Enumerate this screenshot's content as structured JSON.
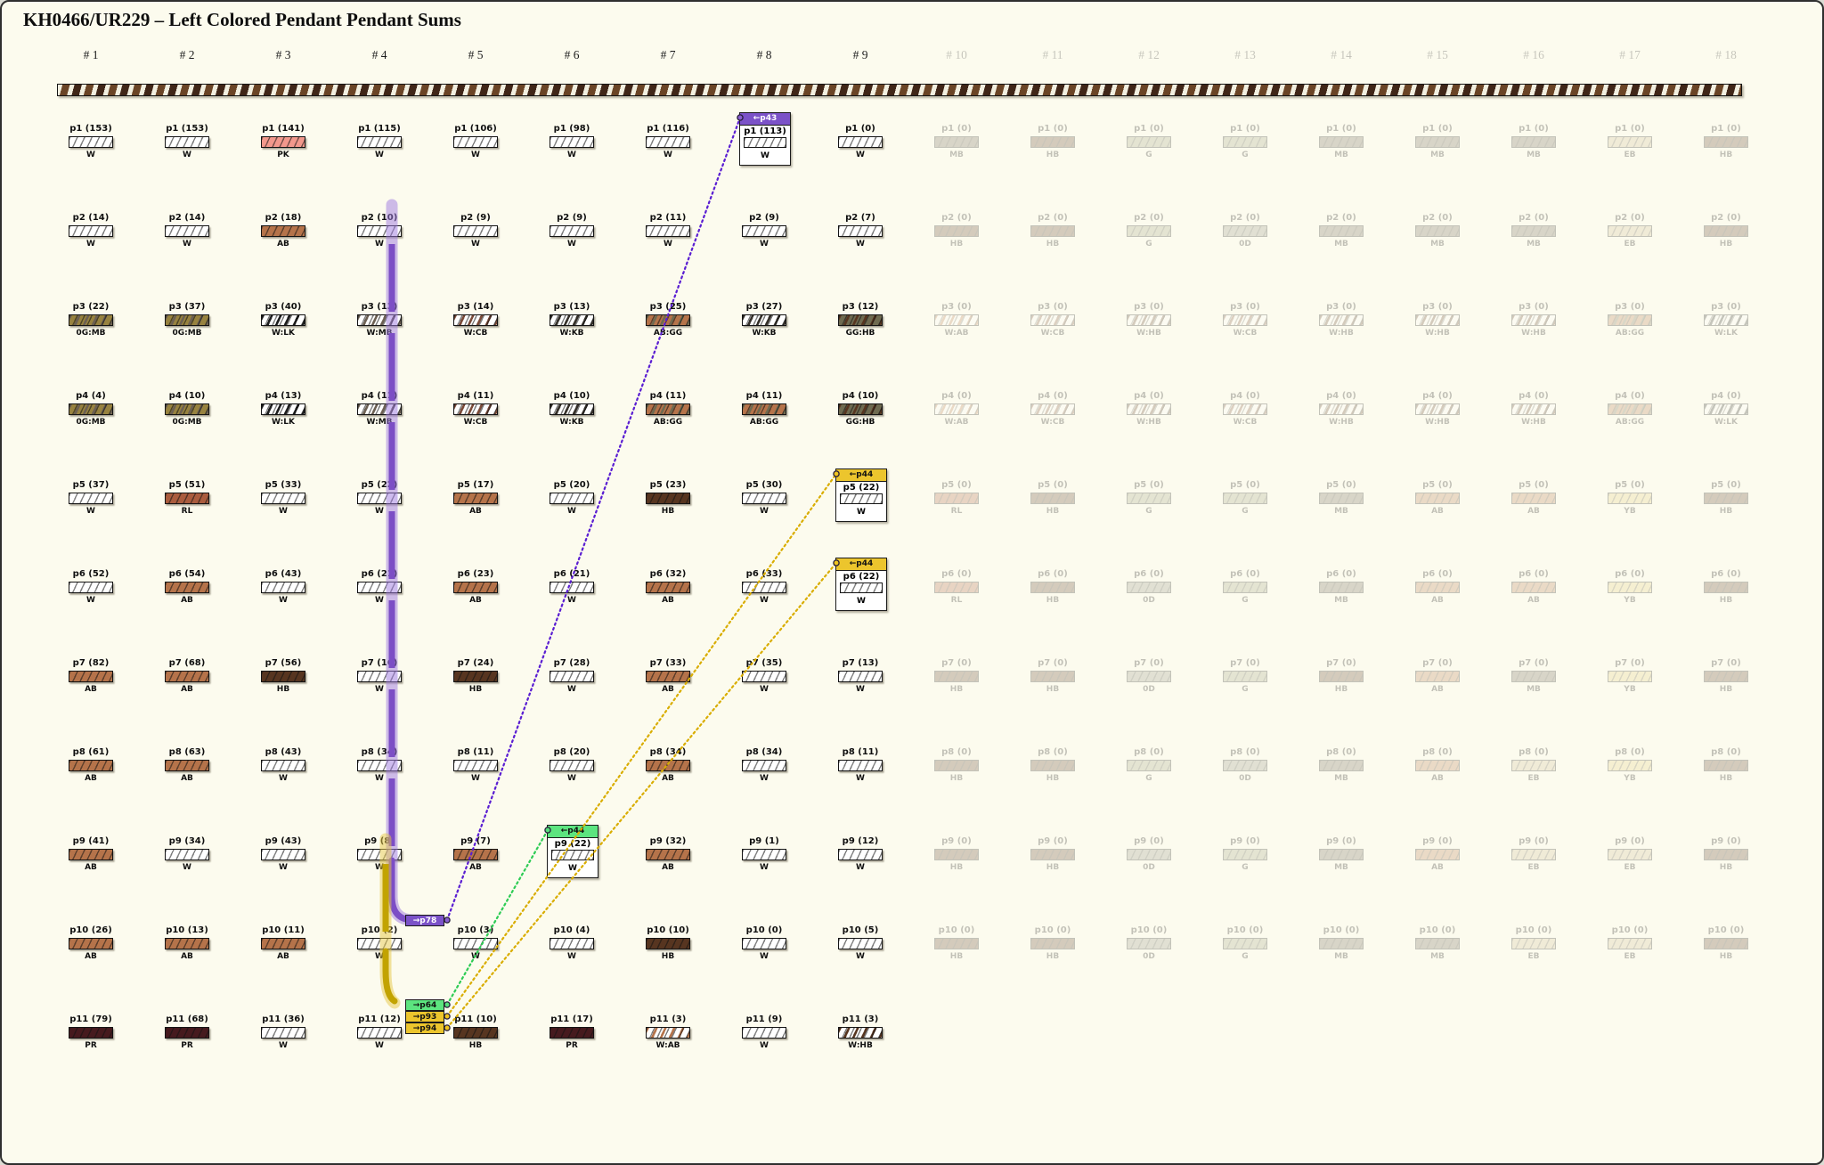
{
  "title": "KH0466/UR229 – Left Colored Pendant Pendant Sums",
  "colors": {
    "background": "#fcfbee",
    "purple": "#7b52c8",
    "purple_line": "#5a1ed2",
    "purple_dark": "#7c4ec5",
    "purple_halo": "rgba(158,122,224,0.5)",
    "gold": "#ecc52d",
    "gold_line": "#d9ad00",
    "gold_dark": "#c2a300",
    "gold_halo": "rgba(230,200,70,0.5)",
    "green": "#5ce47f",
    "green_line": "#2ecc55",
    "bar_codes": {
      "W": "#ffffff",
      "PK": "#f2988c",
      "AB": "#b5734a",
      "HB": "#573520",
      "PR": "#461a1e",
      "RL": "#aa5c3e",
      "0G": "#97823f",
      "GG": "#6e6a50",
      "MB": "#6b5f52",
      "CB": "#7a4a38",
      "KB": "#35302a",
      "LK": "#1d1d1d",
      "EB": "#cbb993",
      "YB": "#e0cc78",
      "G": "#9aa07e",
      "0D": "#8d8d82"
    }
  },
  "columns": [
    {
      "header": "# 1",
      "faded": false,
      "cells": [
        {
          "p": "p1",
          "count": 153,
          "code": "W"
        },
        {
          "p": "p2",
          "count": 14,
          "code": "W"
        },
        {
          "p": "p3",
          "count": 22,
          "code": "0G:MB"
        },
        {
          "p": "p4",
          "count": 4,
          "code": "0G:MB"
        },
        {
          "p": "p5",
          "count": 37,
          "code": "W"
        },
        {
          "p": "p6",
          "count": 52,
          "code": "W"
        },
        {
          "p": "p7",
          "count": 82,
          "code": "AB"
        },
        {
          "p": "p8",
          "count": 61,
          "code": "AB"
        },
        {
          "p": "p9",
          "count": 41,
          "code": "AB"
        },
        {
          "p": "p10",
          "count": 26,
          "code": "AB"
        },
        {
          "p": "p11",
          "count": 79,
          "code": "PR"
        }
      ]
    },
    {
      "header": "# 2",
      "faded": false,
      "cells": [
        {
          "p": "p1",
          "count": 153,
          "code": "W"
        },
        {
          "p": "p2",
          "count": 14,
          "code": "W"
        },
        {
          "p": "p3",
          "count": 37,
          "code": "0G:MB"
        },
        {
          "p": "p4",
          "count": 10,
          "code": "0G:MB"
        },
        {
          "p": "p5",
          "count": 51,
          "code": "RL"
        },
        {
          "p": "p6",
          "count": 54,
          "code": "AB"
        },
        {
          "p": "p7",
          "count": 68,
          "code": "AB"
        },
        {
          "p": "p8",
          "count": 63,
          "code": "AB"
        },
        {
          "p": "p9",
          "count": 34,
          "code": "W"
        },
        {
          "p": "p10",
          "count": 13,
          "code": "AB"
        },
        {
          "p": "p11",
          "count": 68,
          "code": "PR"
        }
      ]
    },
    {
      "header": "# 3",
      "faded": false,
      "cells": [
        {
          "p": "p1",
          "count": 141,
          "code": "PK"
        },
        {
          "p": "p2",
          "count": 18,
          "code": "AB"
        },
        {
          "p": "p3",
          "count": 40,
          "code": "W:LK"
        },
        {
          "p": "p4",
          "count": 13,
          "code": "W:LK"
        },
        {
          "p": "p5",
          "count": 33,
          "code": "W"
        },
        {
          "p": "p6",
          "count": 43,
          "code": "W"
        },
        {
          "p": "p7",
          "count": 56,
          "code": "HB"
        },
        {
          "p": "p8",
          "count": 43,
          "code": "W"
        },
        {
          "p": "p9",
          "count": 43,
          "code": "W"
        },
        {
          "p": "p10",
          "count": 11,
          "code": "AB"
        },
        {
          "p": "p11",
          "count": 36,
          "code": "W"
        }
      ]
    },
    {
      "header": "# 4",
      "faded": false,
      "cells": [
        {
          "p": "p1",
          "count": 115,
          "code": "W"
        },
        {
          "p": "p2",
          "count": 10,
          "code": "W"
        },
        {
          "p": "p3",
          "count": 13,
          "code": "W:MB"
        },
        {
          "p": "p4",
          "count": 11,
          "code": "W:MB"
        },
        {
          "p": "p5",
          "count": 22,
          "code": "W"
        },
        {
          "p": "p6",
          "count": 21,
          "code": "W"
        },
        {
          "p": "p7",
          "count": 16,
          "code": "W"
        },
        {
          "p": "p8",
          "count": 34,
          "code": "W"
        },
        {
          "p": "p9",
          "count": 8,
          "code": "W"
        },
        {
          "p": "p10",
          "count": 2,
          "code": "W"
        },
        {
          "p": "p11",
          "count": 12,
          "code": "W"
        }
      ]
    },
    {
      "header": "# 5",
      "faded": false,
      "cells": [
        {
          "p": "p1",
          "count": 106,
          "code": "W"
        },
        {
          "p": "p2",
          "count": 9,
          "code": "W"
        },
        {
          "p": "p3",
          "count": 14,
          "code": "W:CB"
        },
        {
          "p": "p4",
          "count": 11,
          "code": "W:CB"
        },
        {
          "p": "p5",
          "count": 17,
          "code": "AB"
        },
        {
          "p": "p6",
          "count": 23,
          "code": "AB"
        },
        {
          "p": "p7",
          "count": 24,
          "code": "HB"
        },
        {
          "p": "p8",
          "count": 11,
          "code": "W"
        },
        {
          "p": "p9",
          "count": 7,
          "code": "AB"
        },
        {
          "p": "p10",
          "count": 3,
          "code": "W"
        },
        {
          "p": "p11",
          "count": 10,
          "code": "HB"
        }
      ]
    },
    {
      "header": "# 6",
      "faded": false,
      "cells": [
        {
          "p": "p1",
          "count": 98,
          "code": "W"
        },
        {
          "p": "p2",
          "count": 9,
          "code": "W"
        },
        {
          "p": "p3",
          "count": 13,
          "code": "W:KB"
        },
        {
          "p": "p4",
          "count": 10,
          "code": "W:KB"
        },
        {
          "p": "p5",
          "count": 20,
          "code": "W"
        },
        {
          "p": "p6",
          "count": 21,
          "code": "W"
        },
        {
          "p": "p7",
          "count": 28,
          "code": "W"
        },
        {
          "p": "p8",
          "count": 20,
          "code": "W"
        },
        {
          "p": "p9",
          "count": 22,
          "code": "W"
        },
        {
          "p": "p10",
          "count": 4,
          "code": "W"
        },
        {
          "p": "p11",
          "count": 17,
          "code": "PR"
        }
      ]
    },
    {
      "header": "# 7",
      "faded": false,
      "cells": [
        {
          "p": "p1",
          "count": 116,
          "code": "W"
        },
        {
          "p": "p2",
          "count": 11,
          "code": "W"
        },
        {
          "p": "p3",
          "count": 25,
          "code": "AB:GG"
        },
        {
          "p": "p4",
          "count": 11,
          "code": "AB:GG"
        },
        {
          "p": "p5",
          "count": 23,
          "code": "HB"
        },
        {
          "p": "p6",
          "count": 32,
          "code": "AB"
        },
        {
          "p": "p7",
          "count": 33,
          "code": "AB"
        },
        {
          "p": "p8",
          "count": 34,
          "code": "AB"
        },
        {
          "p": "p9",
          "count": 32,
          "code": "AB"
        },
        {
          "p": "p10",
          "count": 10,
          "code": "HB"
        },
        {
          "p": "p11",
          "count": 3,
          "code": "W:AB"
        }
      ]
    },
    {
      "header": "# 8",
      "faded": false,
      "cells": [
        {
          "p": "p1",
          "count": 113,
          "code": "W"
        },
        {
          "p": "p2",
          "count": 9,
          "code": "W"
        },
        {
          "p": "p3",
          "count": 27,
          "code": "W:KB"
        },
        {
          "p": "p4",
          "count": 11,
          "code": "AB:GG"
        },
        {
          "p": "p5",
          "count": 30,
          "code": "W"
        },
        {
          "p": "p6",
          "count": 33,
          "code": "W"
        },
        {
          "p": "p7",
          "count": 35,
          "code": "W"
        },
        {
          "p": "p8",
          "count": 34,
          "code": "W"
        },
        {
          "p": "p9",
          "count": 1,
          "code": "W"
        },
        {
          "p": "p10",
          "count": 0,
          "code": "W"
        },
        {
          "p": "p11",
          "count": 9,
          "code": "W"
        }
      ]
    },
    {
      "header": "# 9",
      "faded": false,
      "cells": [
        {
          "p": "p1",
          "count": 0,
          "code": "W"
        },
        {
          "p": "p2",
          "count": 7,
          "code": "W"
        },
        {
          "p": "p3",
          "count": 12,
          "code": "GG:HB"
        },
        {
          "p": "p4",
          "count": 10,
          "code": "GG:HB"
        },
        {
          "p": "p5",
          "count": 22,
          "code": "W"
        },
        {
          "p": "p6",
          "count": 22,
          "code": "W"
        },
        {
          "p": "p7",
          "count": 13,
          "code": "W"
        },
        {
          "p": "p8",
          "count": 11,
          "code": "W"
        },
        {
          "p": "p9",
          "count": 12,
          "code": "W"
        },
        {
          "p": "p10",
          "count": 5,
          "code": "W"
        },
        {
          "p": "p11",
          "count": 3,
          "code": "W:HB"
        }
      ]
    },
    {
      "header": "# 10",
      "faded": true,
      "cells": [
        {
          "p": "p1",
          "count": 0,
          "code": "MB"
        },
        {
          "p": "p2",
          "count": 0,
          "code": "HB"
        },
        {
          "p": "p3",
          "count": 0,
          "code": "W:AB"
        },
        {
          "p": "p4",
          "count": 0,
          "code": "W:AB"
        },
        {
          "p": "p5",
          "count": 0,
          "code": "RL"
        },
        {
          "p": "p6",
          "count": 0,
          "code": "RL"
        },
        {
          "p": "p7",
          "count": 0,
          "code": "HB"
        },
        {
          "p": "p8",
          "count": 0,
          "code": "HB"
        },
        {
          "p": "p9",
          "count": 0,
          "code": "HB"
        },
        {
          "p": "p10",
          "count": 0,
          "code": "HB"
        }
      ]
    },
    {
      "header": "# 11",
      "faded": true,
      "cells": [
        {
          "p": "p1",
          "count": 0,
          "code": "HB"
        },
        {
          "p": "p2",
          "count": 0,
          "code": "HB"
        },
        {
          "p": "p3",
          "count": 0,
          "code": "W:CB"
        },
        {
          "p": "p4",
          "count": 0,
          "code": "W:CB"
        },
        {
          "p": "p5",
          "count": 0,
          "code": "HB"
        },
        {
          "p": "p6",
          "count": 0,
          "code": "HB"
        },
        {
          "p": "p7",
          "count": 0,
          "code": "HB"
        },
        {
          "p": "p8",
          "count": 0,
          "code": "HB"
        },
        {
          "p": "p9",
          "count": 0,
          "code": "HB"
        },
        {
          "p": "p10",
          "count": 0,
          "code": "HB"
        }
      ]
    },
    {
      "header": "# 12",
      "faded": true,
      "cells": [
        {
          "p": "p1",
          "count": 0,
          "code": "G"
        },
        {
          "p": "p2",
          "count": 0,
          "code": "G"
        },
        {
          "p": "p3",
          "count": 0,
          "code": "W:HB"
        },
        {
          "p": "p4",
          "count": 0,
          "code": "W:HB"
        },
        {
          "p": "p5",
          "count": 0,
          "code": "G"
        },
        {
          "p": "p6",
          "count": 0,
          "code": "0D"
        },
        {
          "p": "p7",
          "count": 0,
          "code": "0D"
        },
        {
          "p": "p8",
          "count": 0,
          "code": "G"
        },
        {
          "p": "p9",
          "count": 0,
          "code": "0D"
        },
        {
          "p": "p10",
          "count": 0,
          "code": "0D"
        }
      ]
    },
    {
      "header": "# 13",
      "faded": true,
      "cells": [
        {
          "p": "p1",
          "count": 0,
          "code": "G"
        },
        {
          "p": "p2",
          "count": 0,
          "code": "0D"
        },
        {
          "p": "p3",
          "count": 0,
          "code": "W:CB"
        },
        {
          "p": "p4",
          "count": 0,
          "code": "W:CB"
        },
        {
          "p": "p5",
          "count": 0,
          "code": "G"
        },
        {
          "p": "p6",
          "count": 0,
          "code": "G"
        },
        {
          "p": "p7",
          "count": 0,
          "code": "G"
        },
        {
          "p": "p8",
          "count": 0,
          "code": "0D"
        },
        {
          "p": "p9",
          "count": 0,
          "code": "G"
        },
        {
          "p": "p10",
          "count": 0,
          "code": "G"
        }
      ]
    },
    {
      "header": "# 14",
      "faded": true,
      "cells": [
        {
          "p": "p1",
          "count": 0,
          "code": "MB"
        },
        {
          "p": "p2",
          "count": 0,
          "code": "MB"
        },
        {
          "p": "p3",
          "count": 0,
          "code": "W:HB"
        },
        {
          "p": "p4",
          "count": 0,
          "code": "W:HB"
        },
        {
          "p": "p5",
          "count": 0,
          "code": "MB"
        },
        {
          "p": "p6",
          "count": 0,
          "code": "MB"
        },
        {
          "p": "p7",
          "count": 0,
          "code": "HB"
        },
        {
          "p": "p8",
          "count": 0,
          "code": "MB"
        },
        {
          "p": "p9",
          "count": 0,
          "code": "MB"
        },
        {
          "p": "p10",
          "count": 0,
          "code": "MB"
        }
      ]
    },
    {
      "header": "# 15",
      "faded": true,
      "cells": [
        {
          "p": "p1",
          "count": 0,
          "code": "MB"
        },
        {
          "p": "p2",
          "count": 0,
          "code": "MB"
        },
        {
          "p": "p3",
          "count": 0,
          "code": "W:HB"
        },
        {
          "p": "p4",
          "count": 0,
          "code": "W:HB"
        },
        {
          "p": "p5",
          "count": 0,
          "code": "AB"
        },
        {
          "p": "p6",
          "count": 0,
          "code": "AB"
        },
        {
          "p": "p7",
          "count": 0,
          "code": "AB"
        },
        {
          "p": "p8",
          "count": 0,
          "code": "AB"
        },
        {
          "p": "p9",
          "count": 0,
          "code": "AB"
        },
        {
          "p": "p10",
          "count": 0,
          "code": "MB"
        }
      ]
    },
    {
      "header": "# 16",
      "faded": true,
      "cells": [
        {
          "p": "p1",
          "count": 0,
          "code": "MB"
        },
        {
          "p": "p2",
          "count": 0,
          "code": "MB"
        },
        {
          "p": "p3",
          "count": 0,
          "code": "W:HB"
        },
        {
          "p": "p4",
          "count": 0,
          "code": "W:HB"
        },
        {
          "p": "p5",
          "count": 0,
          "code": "AB"
        },
        {
          "p": "p6",
          "count": 0,
          "code": "AB"
        },
        {
          "p": "p7",
          "count": 0,
          "code": "MB"
        },
        {
          "p": "p8",
          "count": 0,
          "code": "EB"
        },
        {
          "p": "p9",
          "count": 0,
          "code": "EB"
        },
        {
          "p": "p10",
          "count": 0,
          "code": "EB"
        }
      ]
    },
    {
      "header": "# 17",
      "faded": true,
      "cells": [
        {
          "p": "p1",
          "count": 0,
          "code": "EB"
        },
        {
          "p": "p2",
          "count": 0,
          "code": "EB"
        },
        {
          "p": "p3",
          "count": 0,
          "code": "AB:GG"
        },
        {
          "p": "p4",
          "count": 0,
          "code": "AB:GG"
        },
        {
          "p": "p5",
          "count": 0,
          "code": "YB"
        },
        {
          "p": "p6",
          "count": 0,
          "code": "YB"
        },
        {
          "p": "p7",
          "count": 0,
          "code": "YB"
        },
        {
          "p": "p8",
          "count": 0,
          "code": "YB"
        },
        {
          "p": "p9",
          "count": 0,
          "code": "EB"
        },
        {
          "p": "p10",
          "count": 0,
          "code": "EB"
        }
      ]
    },
    {
      "header": "# 18",
      "faded": true,
      "cells": [
        {
          "p": "p1",
          "count": 0,
          "code": "HB"
        },
        {
          "p": "p2",
          "count": 0,
          "code": "HB"
        },
        {
          "p": "p3",
          "count": 0,
          "code": "W:LK"
        },
        {
          "p": "p4",
          "count": 0,
          "code": "W:LK"
        },
        {
          "p": "p5",
          "count": 0,
          "code": "HB"
        },
        {
          "p": "p6",
          "count": 0,
          "code": "HB"
        },
        {
          "p": "p7",
          "count": 0,
          "code": "HB"
        },
        {
          "p": "p8",
          "count": 0,
          "code": "HB"
        },
        {
          "p": "p9",
          "count": 0,
          "code": "HB"
        },
        {
          "p": "p10",
          "count": 0,
          "code": "HB"
        }
      ]
    }
  ],
  "highlight_boxes": [
    {
      "col": 8,
      "row": 1,
      "tag": "←p43",
      "color": "purple"
    },
    {
      "col": 9,
      "row": 5,
      "tag": "←p44",
      "color": "gold"
    },
    {
      "col": 9,
      "row": 6,
      "tag": "←p44",
      "color": "gold"
    },
    {
      "col": 6,
      "row": 9,
      "tag": "←p44",
      "color": "green"
    }
  ],
  "side_tags": [
    {
      "label": "→p78",
      "color": "purple",
      "links_to": {
        "col": 8,
        "row": 1
      }
    },
    {
      "label": "→p64",
      "color": "green",
      "links_to": {
        "col": 6,
        "row": 9
      }
    },
    {
      "label": "→p93",
      "color": "gold",
      "links_to": {
        "col": 9,
        "row": 5
      }
    },
    {
      "label": "→p94",
      "color": "gold",
      "links_to": {
        "col": 9,
        "row": 6
      }
    }
  ]
}
